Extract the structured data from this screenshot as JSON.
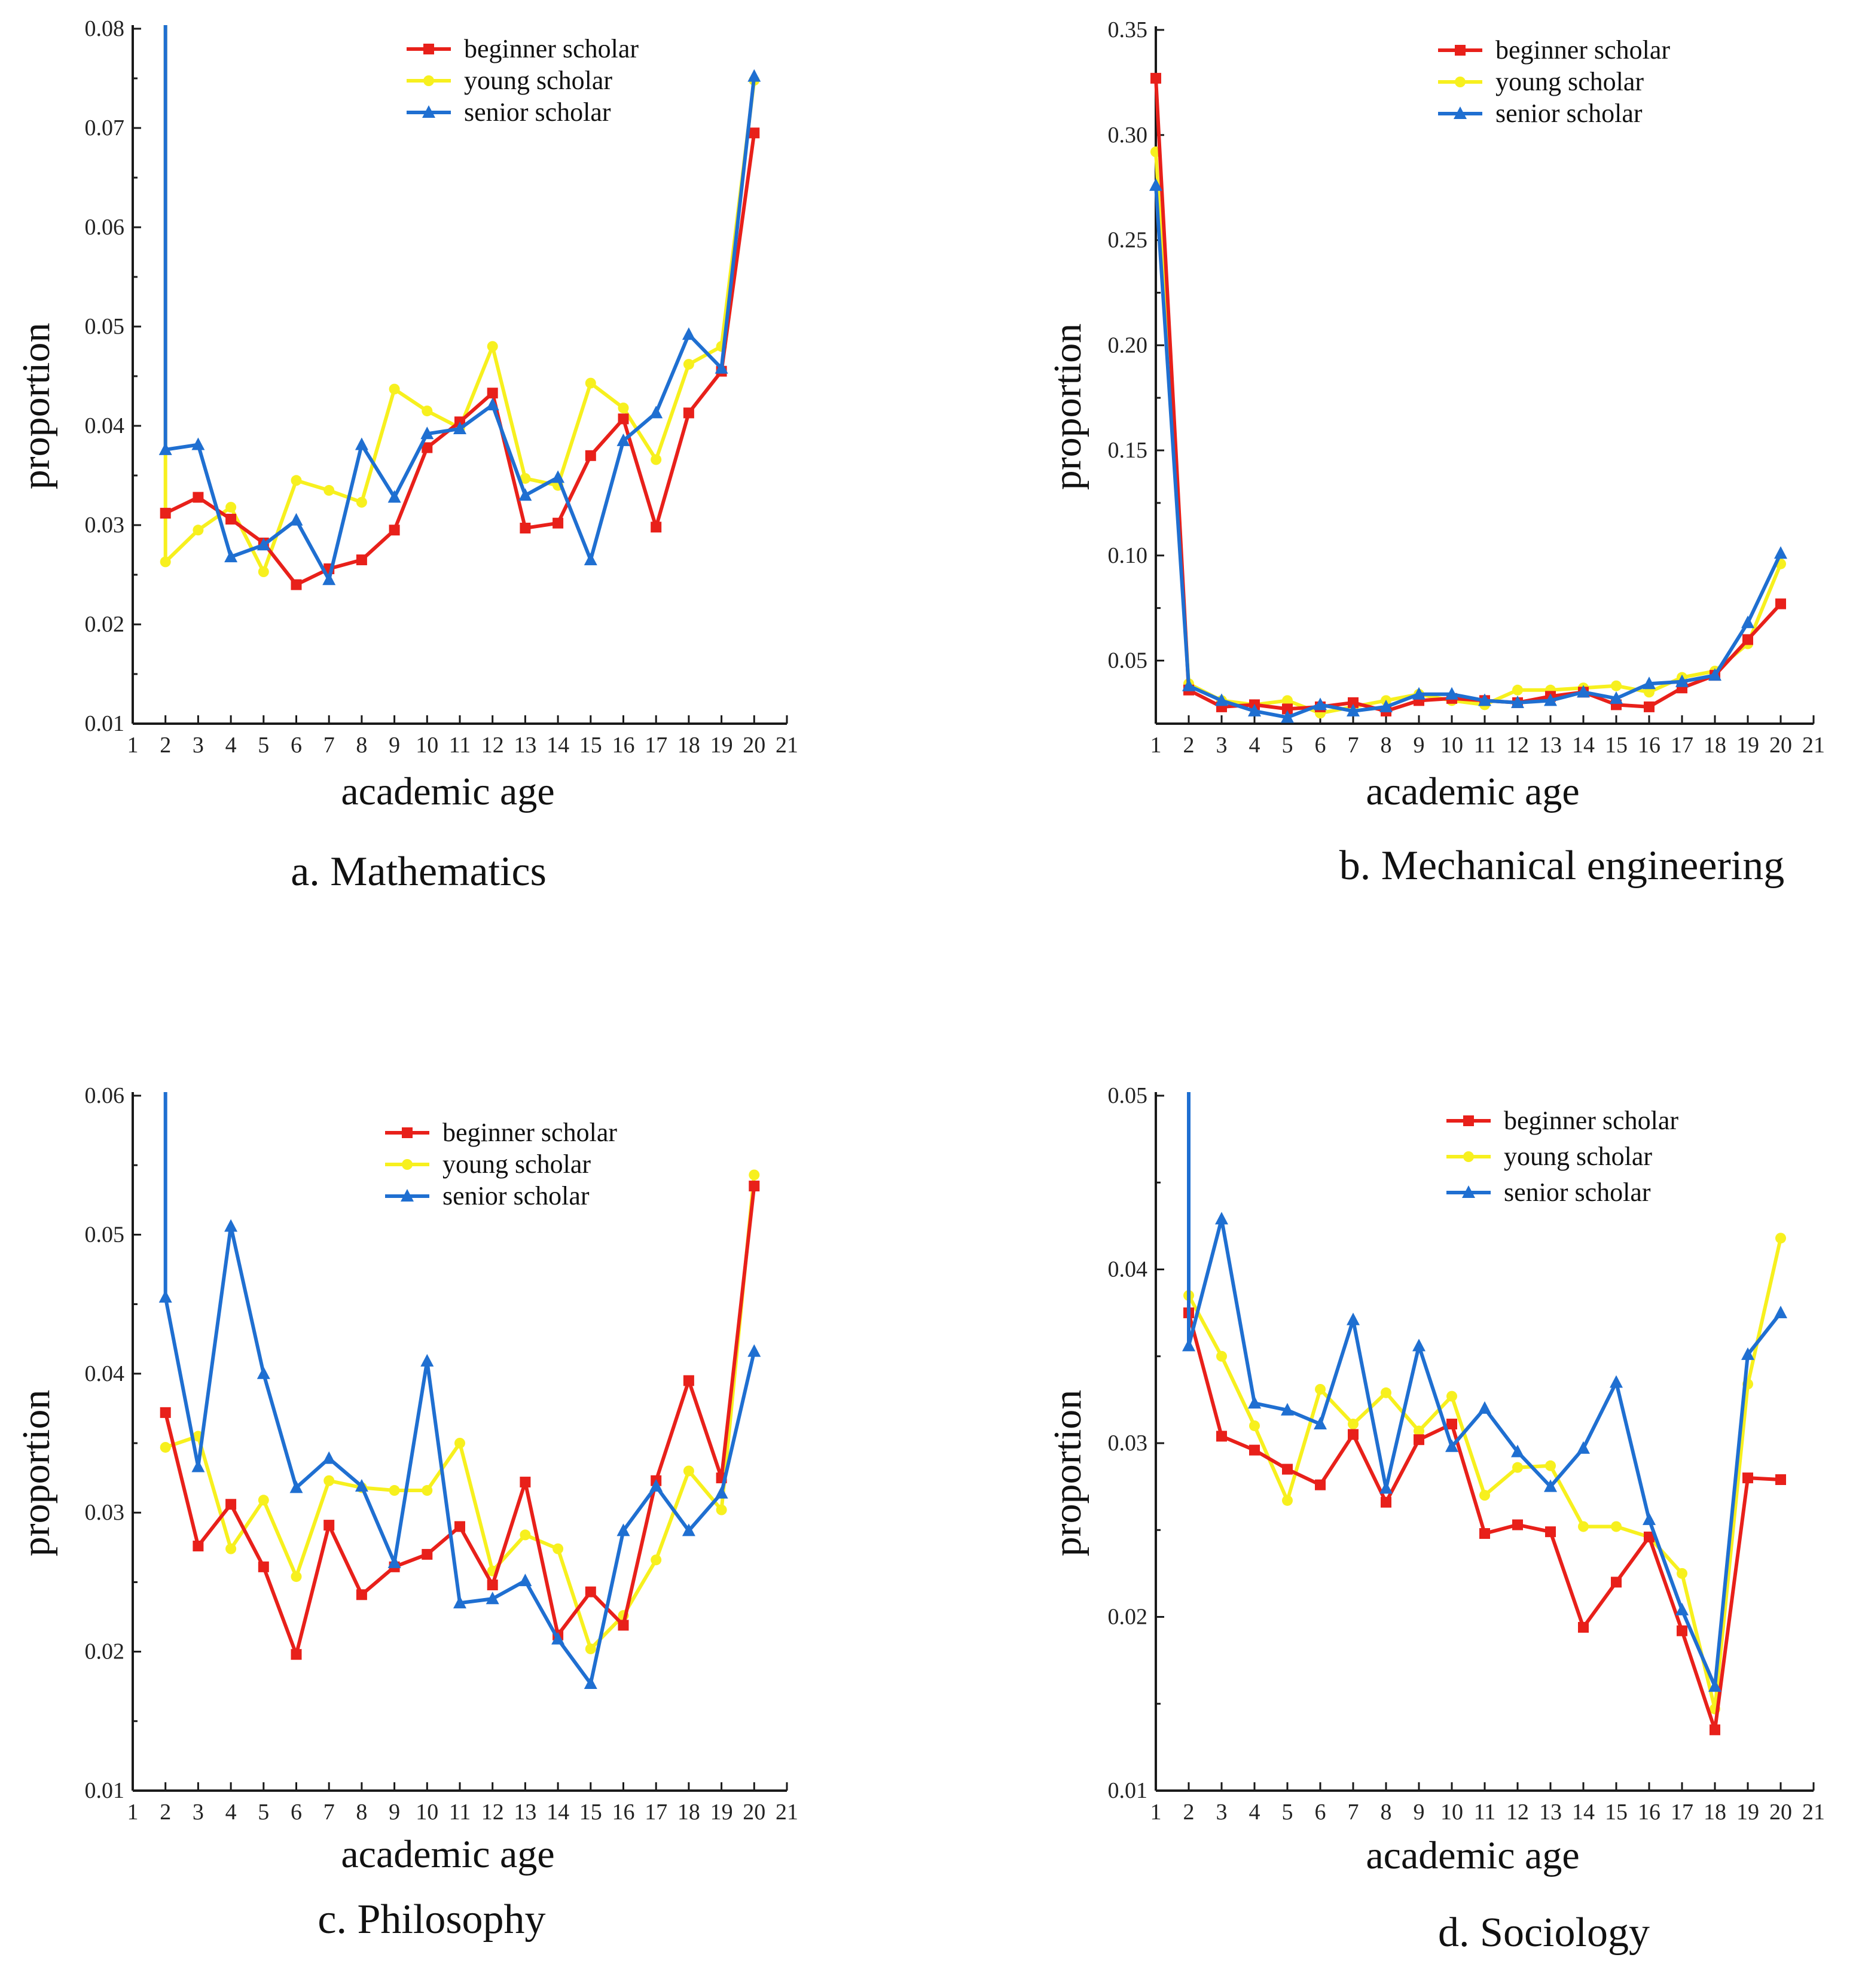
{
  "colors": {
    "beginner": "#e8201a",
    "young": "#f7f01e",
    "senior": "#1f6fd1"
  },
  "chart_data": [
    {
      "type": "line",
      "caption": "a. Mathematics",
      "xlabel": "academic age",
      "ylabel": "proportion",
      "xlim": [
        1,
        21
      ],
      "ylim": [
        0.01,
        0.08
      ],
      "yticks": [
        0.01,
        0.02,
        0.03,
        0.04,
        0.05,
        0.06,
        0.07,
        0.08
      ],
      "ytick_labels": [
        "0.01",
        "0.02",
        "0.03",
        "0.04",
        "0.05",
        "0.06",
        "0.07",
        "0.08"
      ],
      "xticks": [
        1,
        2,
        3,
        4,
        5,
        6,
        7,
        8,
        9,
        10,
        11,
        12,
        13,
        14,
        15,
        16,
        17,
        18,
        19,
        20,
        21
      ],
      "legend": {
        "position": "top-right",
        "entries": [
          "beginner scholar",
          "young scholar",
          "senior scholar"
        ]
      },
      "series": [
        {
          "name": "beginner scholar",
          "marker": "square",
          "x": [
            2,
            3,
            4,
            5,
            6,
            7,
            8,
            9,
            10,
            11,
            12,
            13,
            14,
            15,
            16,
            17,
            18,
            19,
            20
          ],
          "values": [
            0.0312,
            0.0328,
            0.0306,
            0.0282,
            0.024,
            0.0256,
            0.0265,
            0.0295,
            0.0378,
            0.0404,
            0.0433,
            0.0297,
            0.0302,
            0.037,
            0.0407,
            0.0298,
            0.0413,
            0.0455,
            0.0695
          ]
        },
        {
          "name": "young scholar",
          "marker": "circle",
          "x": [
            2,
            3,
            4,
            5,
            6,
            7,
            8,
            9,
            10,
            11,
            12,
            13,
            14,
            15,
            16,
            17,
            18,
            19,
            20
          ],
          "values": [
            0.0263,
            0.0295,
            0.0318,
            0.0253,
            0.0345,
            0.0335,
            0.0323,
            0.0437,
            0.0415,
            0.0398,
            0.048,
            0.0347,
            0.034,
            0.0443,
            0.0418,
            0.0366,
            0.0462,
            0.048,
            0.0748
          ]
        },
        {
          "name": "senior scholar",
          "marker": "triangle",
          "x": [
            2,
            3,
            4,
            5,
            6,
            7,
            8,
            9,
            10,
            11,
            12,
            13,
            14,
            15,
            16,
            17,
            18,
            19,
            20
          ],
          "values": [
            0.0376,
            0.0381,
            0.0268,
            0.028,
            0.0305,
            0.0245,
            0.0381,
            0.0328,
            0.0392,
            0.0397,
            0.0421,
            0.033,
            0.0348,
            0.0265,
            0.0385,
            0.0413,
            0.0492,
            0.0458,
            0.0752
          ]
        }
      ],
      "spike_at_x": 2
    },
    {
      "type": "line",
      "caption": "b. Mechanical engineering",
      "xlabel": "academic age",
      "ylabel": "proportion",
      "xlim": [
        1,
        21
      ],
      "ylim": [
        0.02,
        0.35
      ],
      "yticks": [
        0.05,
        0.1,
        0.15,
        0.2,
        0.25,
        0.3,
        0.35
      ],
      "ytick_labels": [
        "0.05",
        "0.10",
        "0.15",
        "0.20",
        "0.25",
        "0.30",
        "0.35"
      ],
      "xticks": [
        1,
        2,
        3,
        4,
        5,
        6,
        7,
        8,
        9,
        10,
        11,
        12,
        13,
        14,
        15,
        16,
        17,
        18,
        19,
        20,
        21
      ],
      "legend": {
        "position": "top-right",
        "entries": [
          "beginner scholar",
          "young scholar",
          "senior scholar"
        ]
      },
      "series": [
        {
          "name": "beginner scholar",
          "marker": "square",
          "x": [
            1,
            2,
            3,
            4,
            5,
            6,
            7,
            8,
            9,
            10,
            11,
            12,
            13,
            14,
            15,
            16,
            17,
            18,
            19,
            20
          ],
          "values": [
            0.327,
            0.036,
            0.028,
            0.029,
            0.027,
            0.028,
            0.03,
            0.026,
            0.031,
            0.032,
            0.031,
            0.03,
            0.033,
            0.035,
            0.029,
            0.028,
            0.037,
            0.043,
            0.06,
            0.077
          ]
        },
        {
          "name": "young scholar",
          "marker": "circle",
          "x": [
            1,
            2,
            3,
            4,
            5,
            6,
            7,
            8,
            9,
            10,
            11,
            12,
            13,
            14,
            15,
            16,
            17,
            18,
            19,
            20
          ],
          "values": [
            0.292,
            0.039,
            0.031,
            0.029,
            0.031,
            0.025,
            0.028,
            0.031,
            0.034,
            0.031,
            0.029,
            0.036,
            0.036,
            0.037,
            0.038,
            0.035,
            0.042,
            0.045,
            0.058,
            0.096
          ]
        },
        {
          "name": "senior scholar",
          "marker": "triangle",
          "x": [
            1,
            2,
            3,
            4,
            5,
            6,
            7,
            8,
            9,
            10,
            11,
            12,
            13,
            14,
            15,
            16,
            17,
            18,
            19,
            20
          ],
          "values": [
            0.276,
            0.038,
            0.031,
            0.026,
            0.023,
            0.029,
            0.026,
            0.028,
            0.034,
            0.034,
            0.031,
            0.03,
            0.031,
            0.035,
            0.032,
            0.039,
            0.04,
            0.043,
            0.068,
            0.101
          ]
        }
      ]
    },
    {
      "type": "line",
      "caption": "c. Philosophy",
      "xlabel": "academic age",
      "ylabel": "proportion",
      "xlim": [
        1,
        21
      ],
      "ylim": [
        0.01,
        0.06
      ],
      "yticks": [
        0.01,
        0.02,
        0.03,
        0.04,
        0.05,
        0.06
      ],
      "ytick_labels": [
        "0.01",
        "0.02",
        "0.03",
        "0.04",
        "0.05",
        "0.06"
      ],
      "xticks": [
        1,
        2,
        3,
        4,
        5,
        6,
        7,
        8,
        9,
        10,
        11,
        12,
        13,
        14,
        15,
        16,
        17,
        18,
        19,
        20,
        21
      ],
      "legend": {
        "position": "top-right",
        "entries": [
          "beginner scholar",
          "young scholar",
          "senior scholar"
        ]
      },
      "series": [
        {
          "name": "beginner scholar",
          "marker": "square",
          "x": [
            2,
            3,
            4,
            5,
            6,
            7,
            8,
            9,
            10,
            11,
            12,
            13,
            14,
            15,
            16,
            17,
            18,
            19,
            20
          ],
          "values": [
            0.0372,
            0.0276,
            0.0306,
            0.0261,
            0.0198,
            0.0291,
            0.0241,
            0.0261,
            0.027,
            0.029,
            0.0248,
            0.0322,
            0.0212,
            0.0243,
            0.0219,
            0.0323,
            0.0395,
            0.0325,
            0.0535
          ]
        },
        {
          "name": "young scholar",
          "marker": "circle",
          "x": [
            2,
            3,
            4,
            5,
            6,
            7,
            8,
            9,
            10,
            11,
            12,
            13,
            14,
            15,
            16,
            17,
            18,
            19,
            20
          ],
          "values": [
            0.0347,
            0.0355,
            0.0274,
            0.0309,
            0.0254,
            0.0323,
            0.0318,
            0.0316,
            0.0316,
            0.035,
            0.0258,
            0.0284,
            0.0274,
            0.0202,
            0.0226,
            0.0266,
            0.033,
            0.0302,
            0.0543
          ]
        },
        {
          "name": "senior scholar",
          "marker": "triangle",
          "x": [
            2,
            3,
            4,
            5,
            6,
            7,
            8,
            9,
            10,
            11,
            12,
            13,
            14,
            15,
            16,
            17,
            18,
            19,
            20
          ],
          "values": [
            0.0455,
            0.0333,
            0.0506,
            0.04,
            0.0318,
            0.0339,
            0.0319,
            0.0264,
            0.0409,
            0.0235,
            0.0238,
            0.0251,
            0.0209,
            0.0177,
            0.0287,
            0.0319,
            0.0287,
            0.0314,
            0.0416
          ]
        }
      ],
      "spike_at_x": 2
    },
    {
      "type": "line",
      "caption": "d. Sociology",
      "xlabel": "academic age",
      "ylabel": "proportion",
      "xlim": [
        1,
        21
      ],
      "ylim": [
        0.01,
        0.05
      ],
      "yticks": [
        0.01,
        0.02,
        0.03,
        0.04,
        0.05
      ],
      "ytick_labels": [
        "0.01",
        "0.02",
        "0.03",
        "0.04",
        "0.05"
      ],
      "xticks": [
        1,
        2,
        3,
        4,
        5,
        6,
        7,
        8,
        9,
        10,
        11,
        12,
        13,
        14,
        15,
        16,
        17,
        18,
        19,
        20,
        21
      ],
      "legend": {
        "position": "top-right",
        "entries": [
          "beginner scholar",
          "young scholar",
          "senior scholar"
        ]
      },
      "series": [
        {
          "name": "beginner scholar",
          "marker": "square",
          "x": [
            2,
            3,
            4,
            5,
            6,
            7,
            8,
            9,
            10,
            11,
            12,
            13,
            14,
            15,
            16,
            17,
            18,
            19,
            20
          ],
          "values": [
            0.0375,
            0.0304,
            0.0296,
            0.0285,
            0.0276,
            0.0305,
            0.0266,
            0.0302,
            0.0311,
            0.0248,
            0.0253,
            0.0249,
            0.0194,
            0.022,
            0.0246,
            0.0192,
            0.0135,
            0.028,
            0.0279
          ]
        },
        {
          "name": "young scholar",
          "marker": "circle",
          "x": [
            2,
            3,
            4,
            5,
            6,
            7,
            8,
            9,
            10,
            11,
            12,
            13,
            14,
            15,
            16,
            17,
            18,
            19,
            20
          ],
          "values": [
            0.0385,
            0.035,
            0.031,
            0.0267,
            0.0331,
            0.0311,
            0.0329,
            0.0307,
            0.0327,
            0.027,
            0.0286,
            0.0287,
            0.0252,
            0.0252,
            0.0246,
            0.0225,
            0.0147,
            0.0334,
            0.0418
          ]
        },
        {
          "name": "senior scholar",
          "marker": "triangle",
          "x": [
            2,
            3,
            4,
            5,
            6,
            7,
            8,
            9,
            10,
            11,
            12,
            13,
            14,
            15,
            16,
            17,
            18,
            19,
            20
          ],
          "values": [
            0.0356,
            0.0429,
            0.0323,
            0.0319,
            0.0311,
            0.0371,
            0.0274,
            0.0356,
            0.0298,
            0.032,
            0.0295,
            0.0275,
            0.0297,
            0.0335,
            0.0256,
            0.0204,
            0.016,
            0.0351,
            0.0375
          ]
        }
      ],
      "spike_at_x": 2
    }
  ]
}
